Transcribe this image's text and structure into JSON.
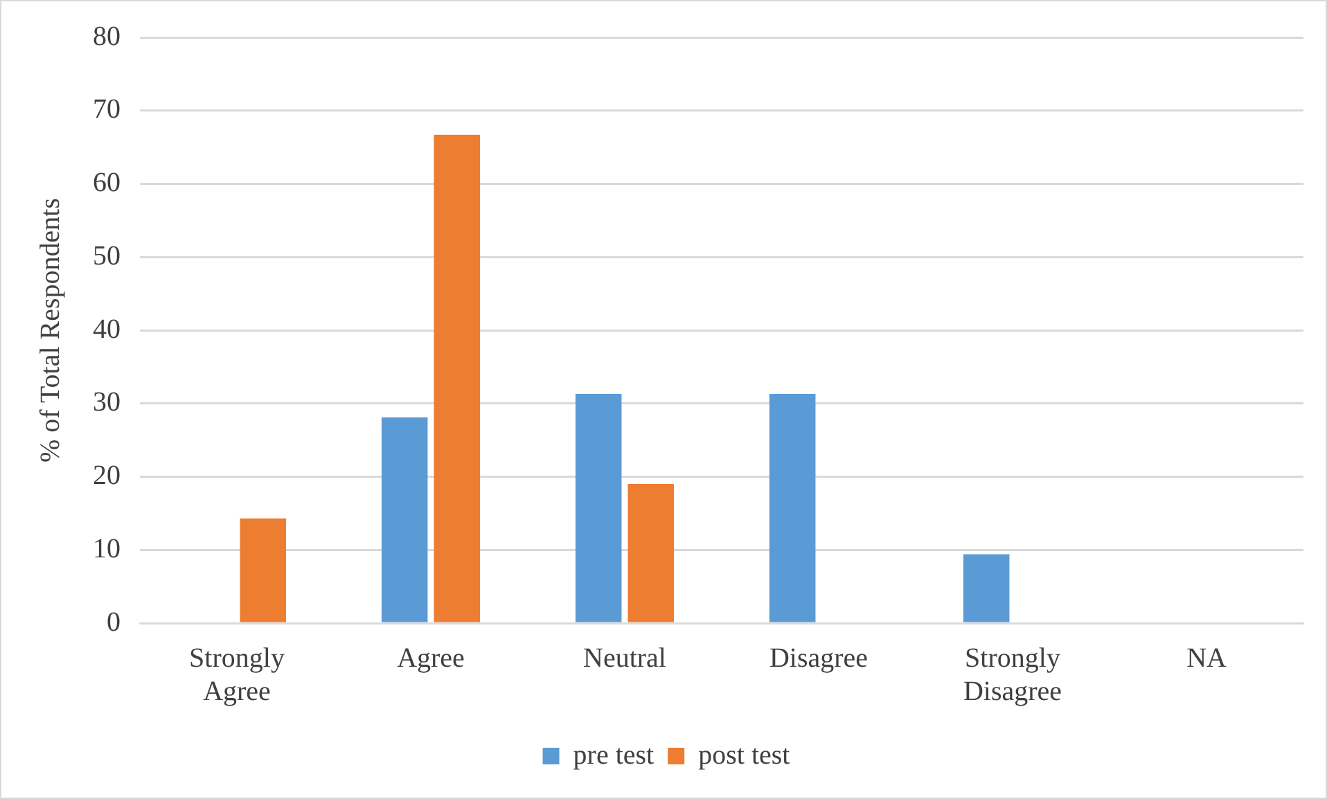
{
  "chart_data": {
    "type": "bar",
    "ylabel": "% of Total Respondents",
    "categories": [
      "Strongly Agree",
      "Agree",
      "Neutral",
      "Disagree",
      "Strongly Disagree",
      "NA"
    ],
    "series": [
      {
        "name": "pre test",
        "color": "#5b9bd5",
        "values": [
          0,
          28.1,
          31.3,
          31.3,
          9.4,
          0
        ]
      },
      {
        "name": "post test",
        "color": "#ed7d31",
        "values": [
          14.3,
          66.7,
          19.0,
          0,
          0,
          0
        ]
      }
    ],
    "ylim": [
      0,
      80
    ],
    "yticks": [
      0,
      10,
      20,
      30,
      40,
      50,
      60,
      70,
      80
    ],
    "grid": "y",
    "legend": "bottom"
  }
}
